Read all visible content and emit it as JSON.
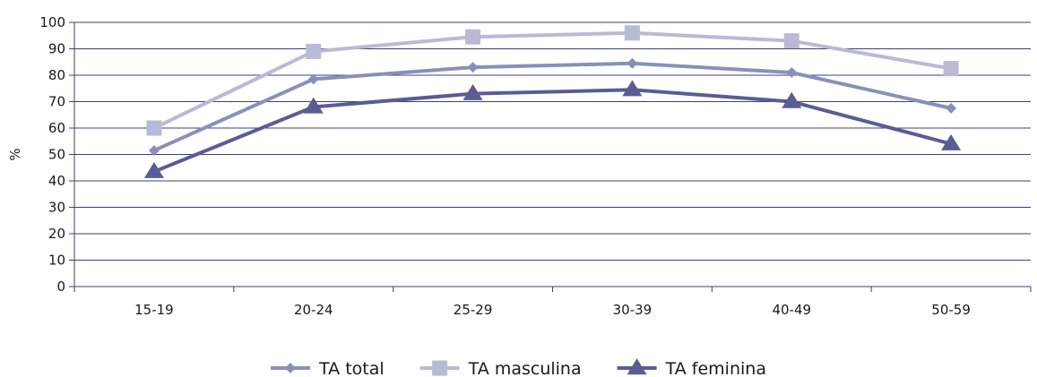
{
  "chart_data": {
    "type": "line",
    "categories": [
      "15-19",
      "20-24",
      "25-29",
      "30-39",
      "40-49",
      "50-59"
    ],
    "ylabel": "%",
    "ylim": [
      0,
      100
    ],
    "yticks": [
      0,
      10,
      20,
      30,
      40,
      50,
      60,
      70,
      80,
      90,
      100
    ],
    "grid": "horizontal",
    "legend_position": "bottom",
    "series": [
      {
        "name": "TA total",
        "marker": "diamond",
        "color": "#8a8fba",
        "values": [
          51.5,
          78.5,
          83,
          84.5,
          81,
          67.5
        ]
      },
      {
        "name": "TA masculina",
        "marker": "square",
        "color": "#b8bad6",
        "values": [
          60,
          89,
          94.5,
          96,
          93,
          82.5
        ]
      },
      {
        "name": "TA feminina",
        "marker": "triangle",
        "color": "#5b5c94",
        "values": [
          43.5,
          68,
          73,
          74.5,
          70,
          54
        ]
      }
    ]
  }
}
